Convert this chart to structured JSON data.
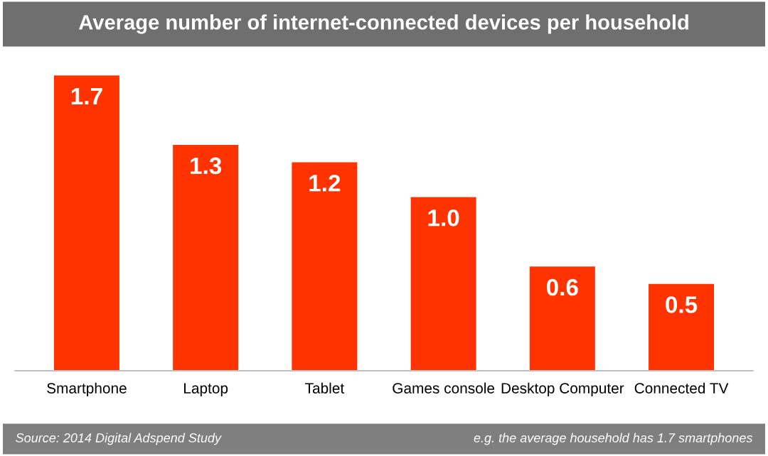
{
  "chart_data": {
    "type": "bar",
    "title": "Average number of internet-connected devices per household",
    "categories": [
      "Smartphone",
      "Laptop",
      "Tablet",
      "Games console",
      "Desktop Computer",
      "Connected TV"
    ],
    "values": [
      1.7,
      1.3,
      1.2,
      1.0,
      0.6,
      0.5
    ],
    "value_labels": [
      "1.7",
      "1.3",
      "1.2",
      "1.0",
      "0.6",
      "0.5"
    ],
    "color": "#ff3300",
    "grid": false,
    "annotations": [
      "Source: 2014 Digital Adspend Study",
      "e.g. the average household has 1.7 smartphones"
    ]
  }
}
